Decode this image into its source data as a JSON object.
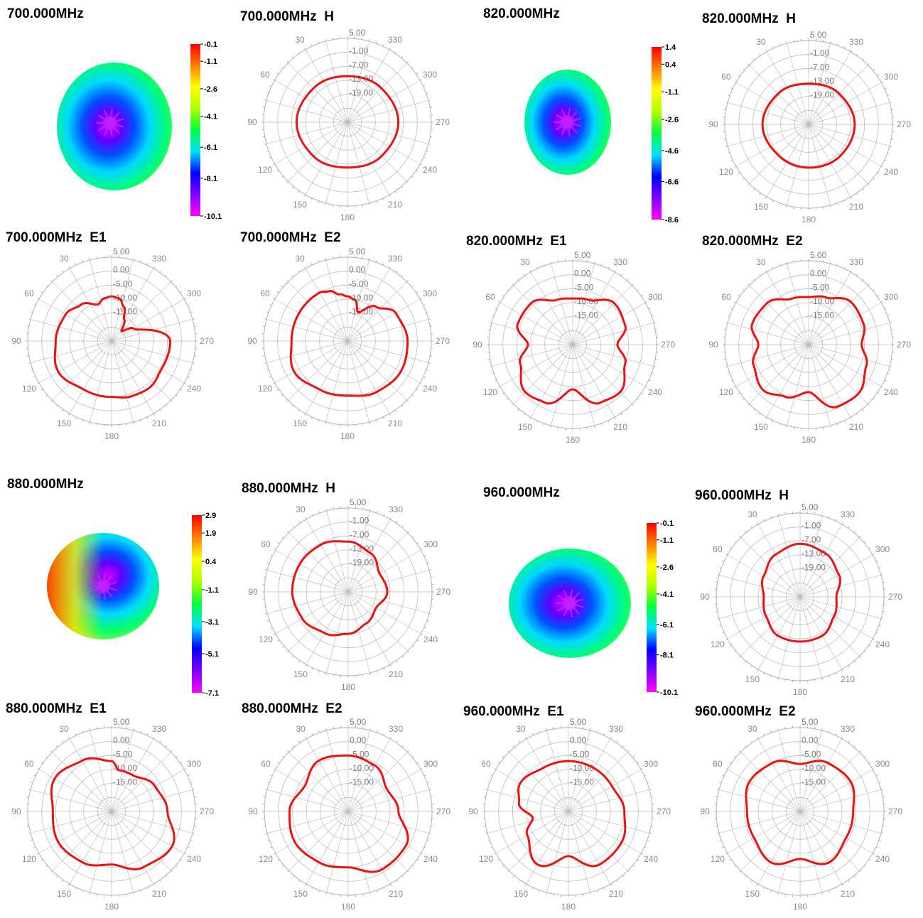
{
  "colors": {
    "trace": "#ee1111",
    "grid": "#bdbdbd",
    "axis": "#888888",
    "cbar": [
      "#ff00ff",
      "#8000ff",
      "#0000ff",
      "#00e0ff",
      "#00ff40",
      "#b0ff00",
      "#ffff00",
      "#ff8000",
      "#ff0000"
    ]
  },
  "chart_data": [
    {
      "type": "polar",
      "freq_label": "700.000MHz H",
      "r_ticks": [
        "5.00",
        "-1.00",
        "-7.00",
        "-13.00",
        "-19.00"
      ],
      "angle_labels": [
        "30",
        "330",
        "60",
        "300",
        "90",
        "270",
        "120",
        "240",
        "150",
        "210",
        "180"
      ],
      "rlim": [
        -25,
        5
      ],
      "series": [
        {
          "theta": [
            0,
            45,
            90,
            135,
            180,
            225,
            270,
            315
          ],
          "r": [
            -8.5,
            -7.8,
            -6.8,
            -7.8,
            -8.8,
            -7.8,
            -6.8,
            -7.8
          ]
        }
      ]
    },
    {
      "type": "polar",
      "freq_label": "820.000MHz H",
      "r_ticks": [
        "5.00",
        "-1.00",
        "-7.00",
        "-13.00",
        "-19.00"
      ],
      "angle_labels": [
        "30",
        "330",
        "60",
        "300",
        "90",
        "270",
        "120",
        "240",
        "150",
        "210",
        "180"
      ],
      "rlim": [
        -25,
        5
      ],
      "series": [
        {
          "theta": [
            0,
            45,
            90,
            135,
            180,
            225,
            270,
            315
          ],
          "r": [
            -10.5,
            -9.5,
            -8.5,
            -9.5,
            -9.5,
            -9.0,
            -8.5,
            -9.5
          ]
        }
      ]
    },
    {
      "type": "polar",
      "freq_label": "880.000MHz H",
      "r_ticks": [
        "5.00",
        "-1.00",
        "-7.00",
        "-13.00",
        "-19.00"
      ],
      "angle_labels": [
        "30",
        "330",
        "60",
        "300",
        "90",
        "270",
        "120",
        "240",
        "150",
        "210",
        "180"
      ],
      "rlim": [
        -25,
        5
      ],
      "series": [
        {
          "theta": [
            0,
            30,
            60,
            90,
            120,
            150,
            180,
            210,
            240,
            270,
            300,
            330
          ],
          "r": [
            -7,
            -5.5,
            -5,
            -5,
            -6,
            -8,
            -10,
            -12,
            -13.5,
            -11,
            -12,
            -9
          ]
        }
      ]
    },
    {
      "type": "polar",
      "freq_label": "960.000MHz H",
      "r_ticks": [
        "5.00",
        "-1.00",
        "-7.00",
        "-13.00",
        "-19.00"
      ],
      "angle_labels": [
        "30",
        "330",
        "60",
        "300",
        "90",
        "270",
        "120",
        "240",
        "150",
        "210",
        "180"
      ],
      "rlim": [
        -25,
        5
      ],
      "series": [
        {
          "theta": [
            0,
            30,
            60,
            90,
            120,
            150,
            180,
            210,
            240,
            270,
            300,
            330
          ],
          "r": [
            -6,
            -7.5,
            -10,
            -12,
            -11,
            -9,
            -9,
            -9,
            -11,
            -12,
            -9,
            -7
          ]
        }
      ]
    },
    {
      "type": "polar",
      "freq_label": "700.000MHz E1",
      "r_ticks": [
        "5.00",
        "0.00",
        "-5.00",
        "-10.00",
        "-15.00"
      ],
      "angle_labels": [
        "30",
        "330",
        "60",
        "300",
        "90",
        "270",
        "120",
        "240",
        "150",
        "210",
        "180"
      ],
      "rlim": [
        -25,
        5
      ],
      "series": [
        {
          "theta": [
            0,
            10,
            20,
            40,
            60,
            90,
            120,
            150,
            180,
            200,
            220,
            240,
            270,
            300,
            315,
            330,
            340,
            350
          ],
          "r": [
            -9,
            -9.5,
            -11,
            -8,
            -6,
            -5,
            -3,
            -5,
            -5,
            -4,
            -3.5,
            -4.5,
            -4,
            -16,
            -20,
            -16,
            -12,
            -9.5
          ]
        }
      ]
    },
    {
      "type": "polar",
      "freq_label": "700.000MHz E2",
      "r_ticks": [
        "5.00",
        "0.00",
        "-5.00",
        "-10.00",
        "-15.00"
      ],
      "angle_labels": [
        "30",
        "330",
        "60",
        "300",
        "90",
        "270",
        "120",
        "240",
        "150",
        "210",
        "180"
      ],
      "rlim": [
        -25,
        5
      ],
      "series": [
        {
          "theta": [
            0,
            10,
            20,
            30,
            60,
            90,
            120,
            150,
            180,
            210,
            240,
            270,
            300,
            320,
            340,
            350
          ],
          "r": [
            -9,
            -8,
            -6,
            -5,
            -5,
            -5,
            -3,
            -5,
            -5.5,
            -4,
            -3,
            -3.5,
            -5,
            -9,
            -14,
            -10
          ]
        }
      ]
    },
    {
      "type": "polar",
      "freq_label": "820.000MHz E1",
      "r_ticks": [
        "5.00",
        "0.00",
        "-5.00",
        "-10.00",
        "-15.00"
      ],
      "angle_labels": [
        "30",
        "330",
        "60",
        "300",
        "90",
        "270",
        "120",
        "240",
        "150",
        "210",
        "180"
      ],
      "rlim": [
        -25,
        5
      ],
      "series": [
        {
          "theta": [
            0,
            20,
            45,
            70,
            90,
            110,
            135,
            155,
            180,
            205,
            225,
            250,
            270,
            290,
            315,
            340
          ],
          "r": [
            -8.5,
            -8,
            -4,
            -4,
            -9,
            -5,
            -1,
            -2,
            -9,
            -2,
            -1,
            -5,
            -9,
            -5,
            -4,
            -8
          ]
        }
      ]
    },
    {
      "type": "polar",
      "freq_label": "820.000MHz E2",
      "r_ticks": [
        "5.00",
        "0.00",
        "-5.00",
        "-10.00",
        "-15.00"
      ],
      "angle_labels": [
        "30",
        "330",
        "60",
        "300",
        "90",
        "270",
        "120",
        "240",
        "150",
        "210",
        "180"
      ],
      "rlim": [
        -25,
        5
      ],
      "series": [
        {
          "theta": [
            0,
            20,
            45,
            70,
            90,
            110,
            135,
            155,
            180,
            205,
            225,
            250,
            270,
            290,
            315,
            340
          ],
          "r": [
            -8,
            -7.5,
            -4,
            -3.5,
            -7,
            -4,
            -2,
            -4.5,
            -8,
            -0.5,
            0,
            -3,
            -6,
            -4,
            -3.5,
            -7
          ]
        }
      ]
    },
    {
      "type": "polar",
      "freq_label": "880.000MHz E1",
      "r_ticks": [
        "5.00",
        "0.00",
        "-5.00",
        "-10.00",
        "-15.00"
      ],
      "angle_labels": [
        "30",
        "330",
        "60",
        "300",
        "90",
        "270",
        "120",
        "240",
        "150",
        "210",
        "180"
      ],
      "rlim": [
        -25,
        5
      ],
      "series": [
        {
          "theta": [
            0,
            30,
            60,
            90,
            120,
            150,
            180,
            210,
            240,
            270,
            300,
            330,
            350
          ],
          "r": [
            -7,
            -4,
            -1.5,
            -4,
            -3,
            -4,
            -6,
            -2,
            0,
            -5,
            -7,
            -10,
            -10
          ]
        }
      ]
    },
    {
      "type": "polar",
      "freq_label": "880.000MHz E2",
      "r_ticks": [
        "5.00",
        "0.00",
        "-5.00",
        "-10.00",
        "-15.00"
      ],
      "angle_labels": [
        "30",
        "330",
        "60",
        "300",
        "90",
        "270",
        "120",
        "240",
        "150",
        "210",
        "180"
      ],
      "rlim": [
        -25,
        5
      ],
      "series": [
        {
          "theta": [
            0,
            30,
            60,
            90,
            120,
            150,
            180,
            210,
            240,
            270,
            300,
            330
          ],
          "r": [
            -5,
            -4,
            -7,
            -4,
            -3,
            -4,
            -5,
            -1,
            -1,
            -7,
            -9,
            -6
          ]
        }
      ]
    },
    {
      "type": "polar",
      "freq_label": "960.000MHz E1",
      "r_ticks": [
        "5.00",
        "0.00",
        "-5.00",
        "-10.00",
        "-15.00"
      ],
      "angle_labels": [
        "30",
        "330",
        "60",
        "300",
        "90",
        "270",
        "120",
        "240",
        "150",
        "210",
        "180"
      ],
      "rlim": [
        -25,
        5
      ],
      "series": [
        {
          "theta": [
            0,
            30,
            60,
            80,
            100,
            120,
            150,
            180,
            210,
            240,
            270,
            300,
            330
          ],
          "r": [
            -7,
            -7,
            -5,
            -7,
            -12,
            -8,
            -3,
            -9,
            -3,
            -3,
            -5,
            -7,
            -7
          ]
        }
      ]
    },
    {
      "type": "polar",
      "freq_label": "960.000MHz E2",
      "r_ticks": [
        "5.00",
        "0.00",
        "-5.00",
        "-10.00",
        "-15.00"
      ],
      "angle_labels": [
        "30",
        "330",
        "60",
        "300",
        "90",
        "270",
        "120",
        "240",
        "150",
        "210",
        "180"
      ],
      "rlim": [
        -25,
        5
      ],
      "series": [
        {
          "theta": [
            0,
            30,
            60,
            90,
            120,
            150,
            180,
            210,
            240,
            270,
            300,
            330
          ],
          "r": [
            -8,
            -5,
            -4,
            -6,
            -6,
            -4,
            -8,
            -4,
            -6,
            -6,
            -4,
            -5
          ]
        }
      ]
    },
    {
      "type": "heatmap",
      "freq_label": "700.000MHz",
      "colorbar_ticks": [
        "-0.1",
        "-1.1",
        "-2.6",
        "-4.1",
        "-6.1",
        "-8.1",
        "-10.1"
      ]
    },
    {
      "type": "heatmap",
      "freq_label": "820.000MHz",
      "colorbar_ticks": [
        "1.4",
        "0.4",
        "-1.1",
        "-2.6",
        "-4.6",
        "-6.6",
        "-8.6"
      ]
    },
    {
      "type": "heatmap",
      "freq_label": "880.000MHz",
      "colorbar_ticks": [
        "2.9",
        "1.9",
        "0.4",
        "-1.1",
        "-3.1",
        "-5.1",
        "-7.1"
      ]
    },
    {
      "type": "heatmap",
      "freq_label": "960.000MHz",
      "colorbar_ticks": [
        "-0.1",
        "-1.1",
        "-2.6",
        "-4.1",
        "-6.1",
        "-8.1",
        "-10.1"
      ]
    }
  ]
}
